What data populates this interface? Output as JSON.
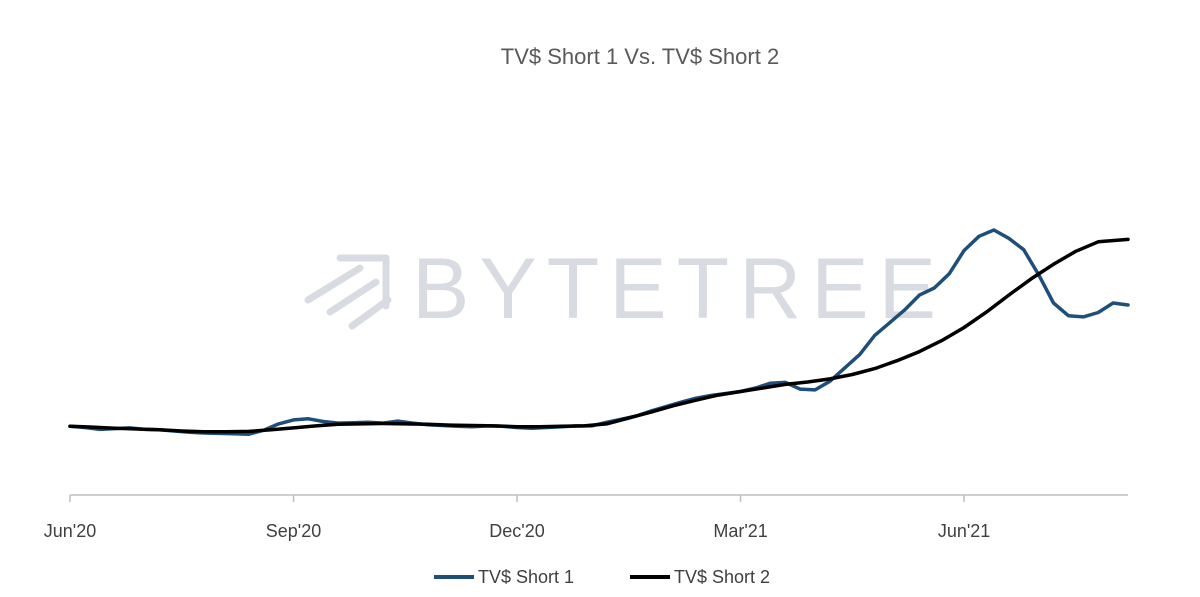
{
  "watermark": {
    "text": "BYTETREE",
    "icon": "bytetree-logo-icon",
    "color": "#d9dbe3"
  },
  "chart_data": {
    "type": "line",
    "title": "TV$ Short 1 Vs. TV$ Short 2",
    "xlabel": "",
    "ylabel": "",
    "x_tick_labels": [
      "Jun'20",
      "Sep'20",
      "Dec'20",
      "Mar'21",
      "Jun'21"
    ],
    "x_tick_months": [
      0,
      3,
      6,
      9,
      12
    ],
    "xlim": [
      0,
      14.2
    ],
    "ylim": [
      0,
      100
    ],
    "grid": false,
    "y_axis_visible": false,
    "legend_position": "bottom",
    "series": [
      {
        "name": "TV$ Short 1",
        "color": "#1f4e79",
        "points": [
          [
            0.0,
            17.4
          ],
          [
            0.2,
            17.1
          ],
          [
            0.4,
            16.6
          ],
          [
            0.6,
            16.8
          ],
          [
            0.8,
            17.0
          ],
          [
            1.0,
            16.6
          ],
          [
            1.2,
            16.5
          ],
          [
            1.4,
            16.2
          ],
          [
            1.6,
            15.9
          ],
          [
            1.8,
            15.7
          ],
          [
            2.0,
            15.6
          ],
          [
            2.2,
            15.5
          ],
          [
            2.4,
            15.4
          ],
          [
            2.6,
            16.4
          ],
          [
            2.8,
            18.0
          ],
          [
            3.0,
            19.0
          ],
          [
            3.2,
            19.3
          ],
          [
            3.4,
            18.6
          ],
          [
            3.6,
            18.2
          ],
          [
            3.8,
            18.3
          ],
          [
            4.0,
            18.4
          ],
          [
            4.2,
            18.2
          ],
          [
            4.4,
            18.7
          ],
          [
            4.6,
            18.2
          ],
          [
            4.8,
            17.8
          ],
          [
            5.0,
            17.6
          ],
          [
            5.2,
            17.4
          ],
          [
            5.4,
            17.3
          ],
          [
            5.6,
            17.5
          ],
          [
            5.8,
            17.4
          ],
          [
            6.0,
            17.1
          ],
          [
            6.2,
            16.9
          ],
          [
            6.4,
            17.1
          ],
          [
            6.6,
            17.3
          ],
          [
            6.8,
            17.5
          ],
          [
            7.0,
            17.5
          ],
          [
            7.2,
            18.4
          ],
          [
            7.4,
            19.2
          ],
          [
            7.6,
            20.0
          ],
          [
            7.8,
            21.3
          ],
          [
            8.0,
            22.4
          ],
          [
            8.2,
            23.5
          ],
          [
            8.4,
            24.5
          ],
          [
            8.6,
            25.2
          ],
          [
            8.8,
            25.7
          ],
          [
            9.0,
            26.2
          ],
          [
            9.2,
            27.1
          ],
          [
            9.4,
            28.3
          ],
          [
            9.6,
            28.5
          ],
          [
            9.8,
            26.8
          ],
          [
            10.0,
            26.6
          ],
          [
            10.2,
            28.8
          ],
          [
            10.4,
            32.2
          ],
          [
            10.6,
            35.6
          ],
          [
            10.8,
            40.4
          ],
          [
            11.0,
            43.6
          ],
          [
            11.2,
            46.8
          ],
          [
            11.4,
            50.6
          ],
          [
            11.6,
            52.4
          ],
          [
            11.8,
            56.0
          ],
          [
            12.0,
            61.9
          ],
          [
            12.2,
            65.5
          ],
          [
            12.4,
            67.1
          ],
          [
            12.6,
            65.0
          ],
          [
            12.8,
            62.1
          ],
          [
            13.0,
            55.8
          ],
          [
            13.2,
            48.6
          ],
          [
            13.4,
            45.4
          ],
          [
            13.6,
            45.1
          ],
          [
            13.8,
            46.2
          ],
          [
            14.0,
            48.6
          ],
          [
            14.2,
            48.1
          ]
        ]
      },
      {
        "name": "TV$ Short 2",
        "color": "#000000",
        "points": [
          [
            0.0,
            17.4
          ],
          [
            0.3,
            17.2
          ],
          [
            0.6,
            16.9
          ],
          [
            0.9,
            16.7
          ],
          [
            1.2,
            16.5
          ],
          [
            1.5,
            16.2
          ],
          [
            1.8,
            16.0
          ],
          [
            2.1,
            16.0
          ],
          [
            2.4,
            16.1
          ],
          [
            2.7,
            16.5
          ],
          [
            3.0,
            17.0
          ],
          [
            3.3,
            17.5
          ],
          [
            3.6,
            17.9
          ],
          [
            3.9,
            18.0
          ],
          [
            4.2,
            18.1
          ],
          [
            4.5,
            18.0
          ],
          [
            4.8,
            17.9
          ],
          [
            5.1,
            17.7
          ],
          [
            5.4,
            17.6
          ],
          [
            5.7,
            17.5
          ],
          [
            6.0,
            17.3
          ],
          [
            6.3,
            17.3
          ],
          [
            6.6,
            17.4
          ],
          [
            6.9,
            17.5
          ],
          [
            7.2,
            18.0
          ],
          [
            7.5,
            19.5
          ],
          [
            7.8,
            21.0
          ],
          [
            8.1,
            22.6
          ],
          [
            8.4,
            24.0
          ],
          [
            8.7,
            25.3
          ],
          [
            9.0,
            26.2
          ],
          [
            9.3,
            27.1
          ],
          [
            9.6,
            28.0
          ],
          [
            9.9,
            28.6
          ],
          [
            10.2,
            29.4
          ],
          [
            10.5,
            30.5
          ],
          [
            10.8,
            32.0
          ],
          [
            11.1,
            34.0
          ],
          [
            11.4,
            36.3
          ],
          [
            11.7,
            39.1
          ],
          [
            12.0,
            42.4
          ],
          [
            12.3,
            46.3
          ],
          [
            12.6,
            50.6
          ],
          [
            12.9,
            54.7
          ],
          [
            13.2,
            58.4
          ],
          [
            13.5,
            61.7
          ],
          [
            13.8,
            64.1
          ],
          [
            14.2,
            64.7
          ]
        ]
      }
    ]
  }
}
